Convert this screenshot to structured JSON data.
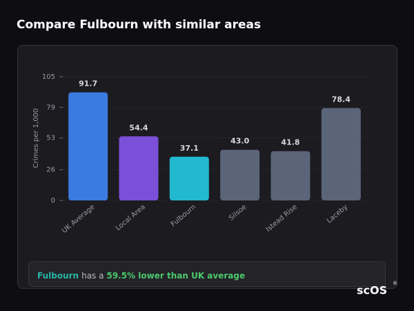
{
  "title": "Compare Fulbourn with similar areas",
  "chart_data": {
    "type": "bar",
    "ylabel": "Crimes per 1,000",
    "categories": [
      "UK Average",
      "Local Area",
      "Fulbourn",
      "Silsoe",
      "Istead Rise",
      "Laceby"
    ],
    "values": [
      91.7,
      54.4,
      37.1,
      43.0,
      41.8,
      78.4
    ],
    "value_labels": [
      "91.7",
      "54.4",
      "37.1",
      "43.0",
      "41.8",
      "78.4"
    ],
    "colors": [
      "#3a7be0",
      "#7b4fd8",
      "#22b9d0",
      "#5b6579",
      "#5b6579",
      "#5b6579"
    ],
    "ylim": [
      0,
      105
    ],
    "yticks": [
      0,
      26,
      53,
      79,
      105
    ],
    "grid": true
  },
  "summary": {
    "place": "Fulbourn",
    "text": "has a",
    "highlight": "59.5% lower than UK average"
  },
  "logo": {
    "text": "scOS",
    "mark": "®"
  }
}
